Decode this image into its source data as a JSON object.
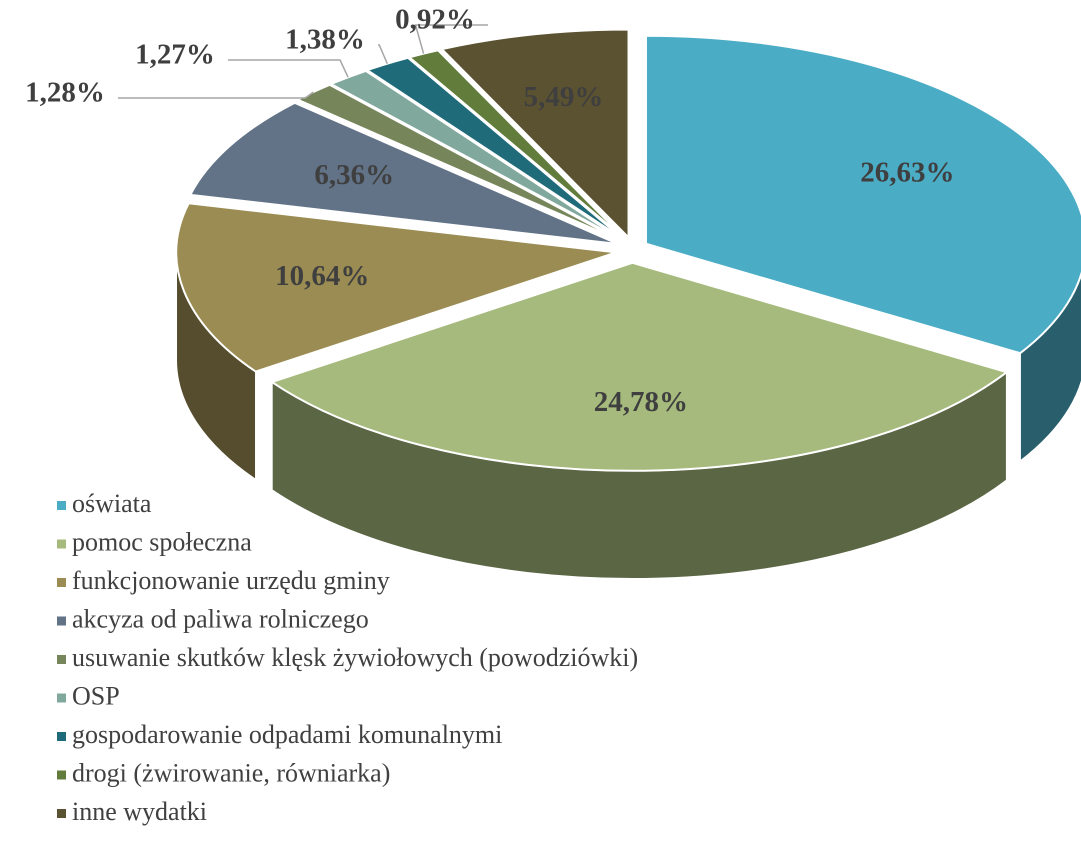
{
  "chart_data": {
    "type": "pie3d",
    "categories": [
      "oświata",
      "pomoc społeczna",
      "funkcjonowanie urzędu gminy",
      "akcyza od paliwa rolniczego",
      "usuwanie skutków klęsk żywiołowych (powodziówki)",
      "OSP",
      "gospodarowanie odpadami komunalnymi",
      "drogi (żwirowanie, równiarka)",
      "inne wydatki"
    ],
    "values": [
      26.63,
      24.78,
      10.64,
      6.36,
      1.28,
      1.27,
      1.38,
      0.92,
      5.49
    ],
    "value_labels": [
      "26,63%",
      "24,78%",
      "10,64%",
      "6,36%",
      "1,28%",
      "1,27%",
      "1,38%",
      "0,92%",
      "5,49%"
    ],
    "colors": [
      "#4bacc6",
      "#a5ba7c",
      "#9a8c52",
      "#627387",
      "#77865a",
      "#80a89d",
      "#1f6b79",
      "#627c3c",
      "#5b5232"
    ],
    "legend": "bottom-left"
  }
}
